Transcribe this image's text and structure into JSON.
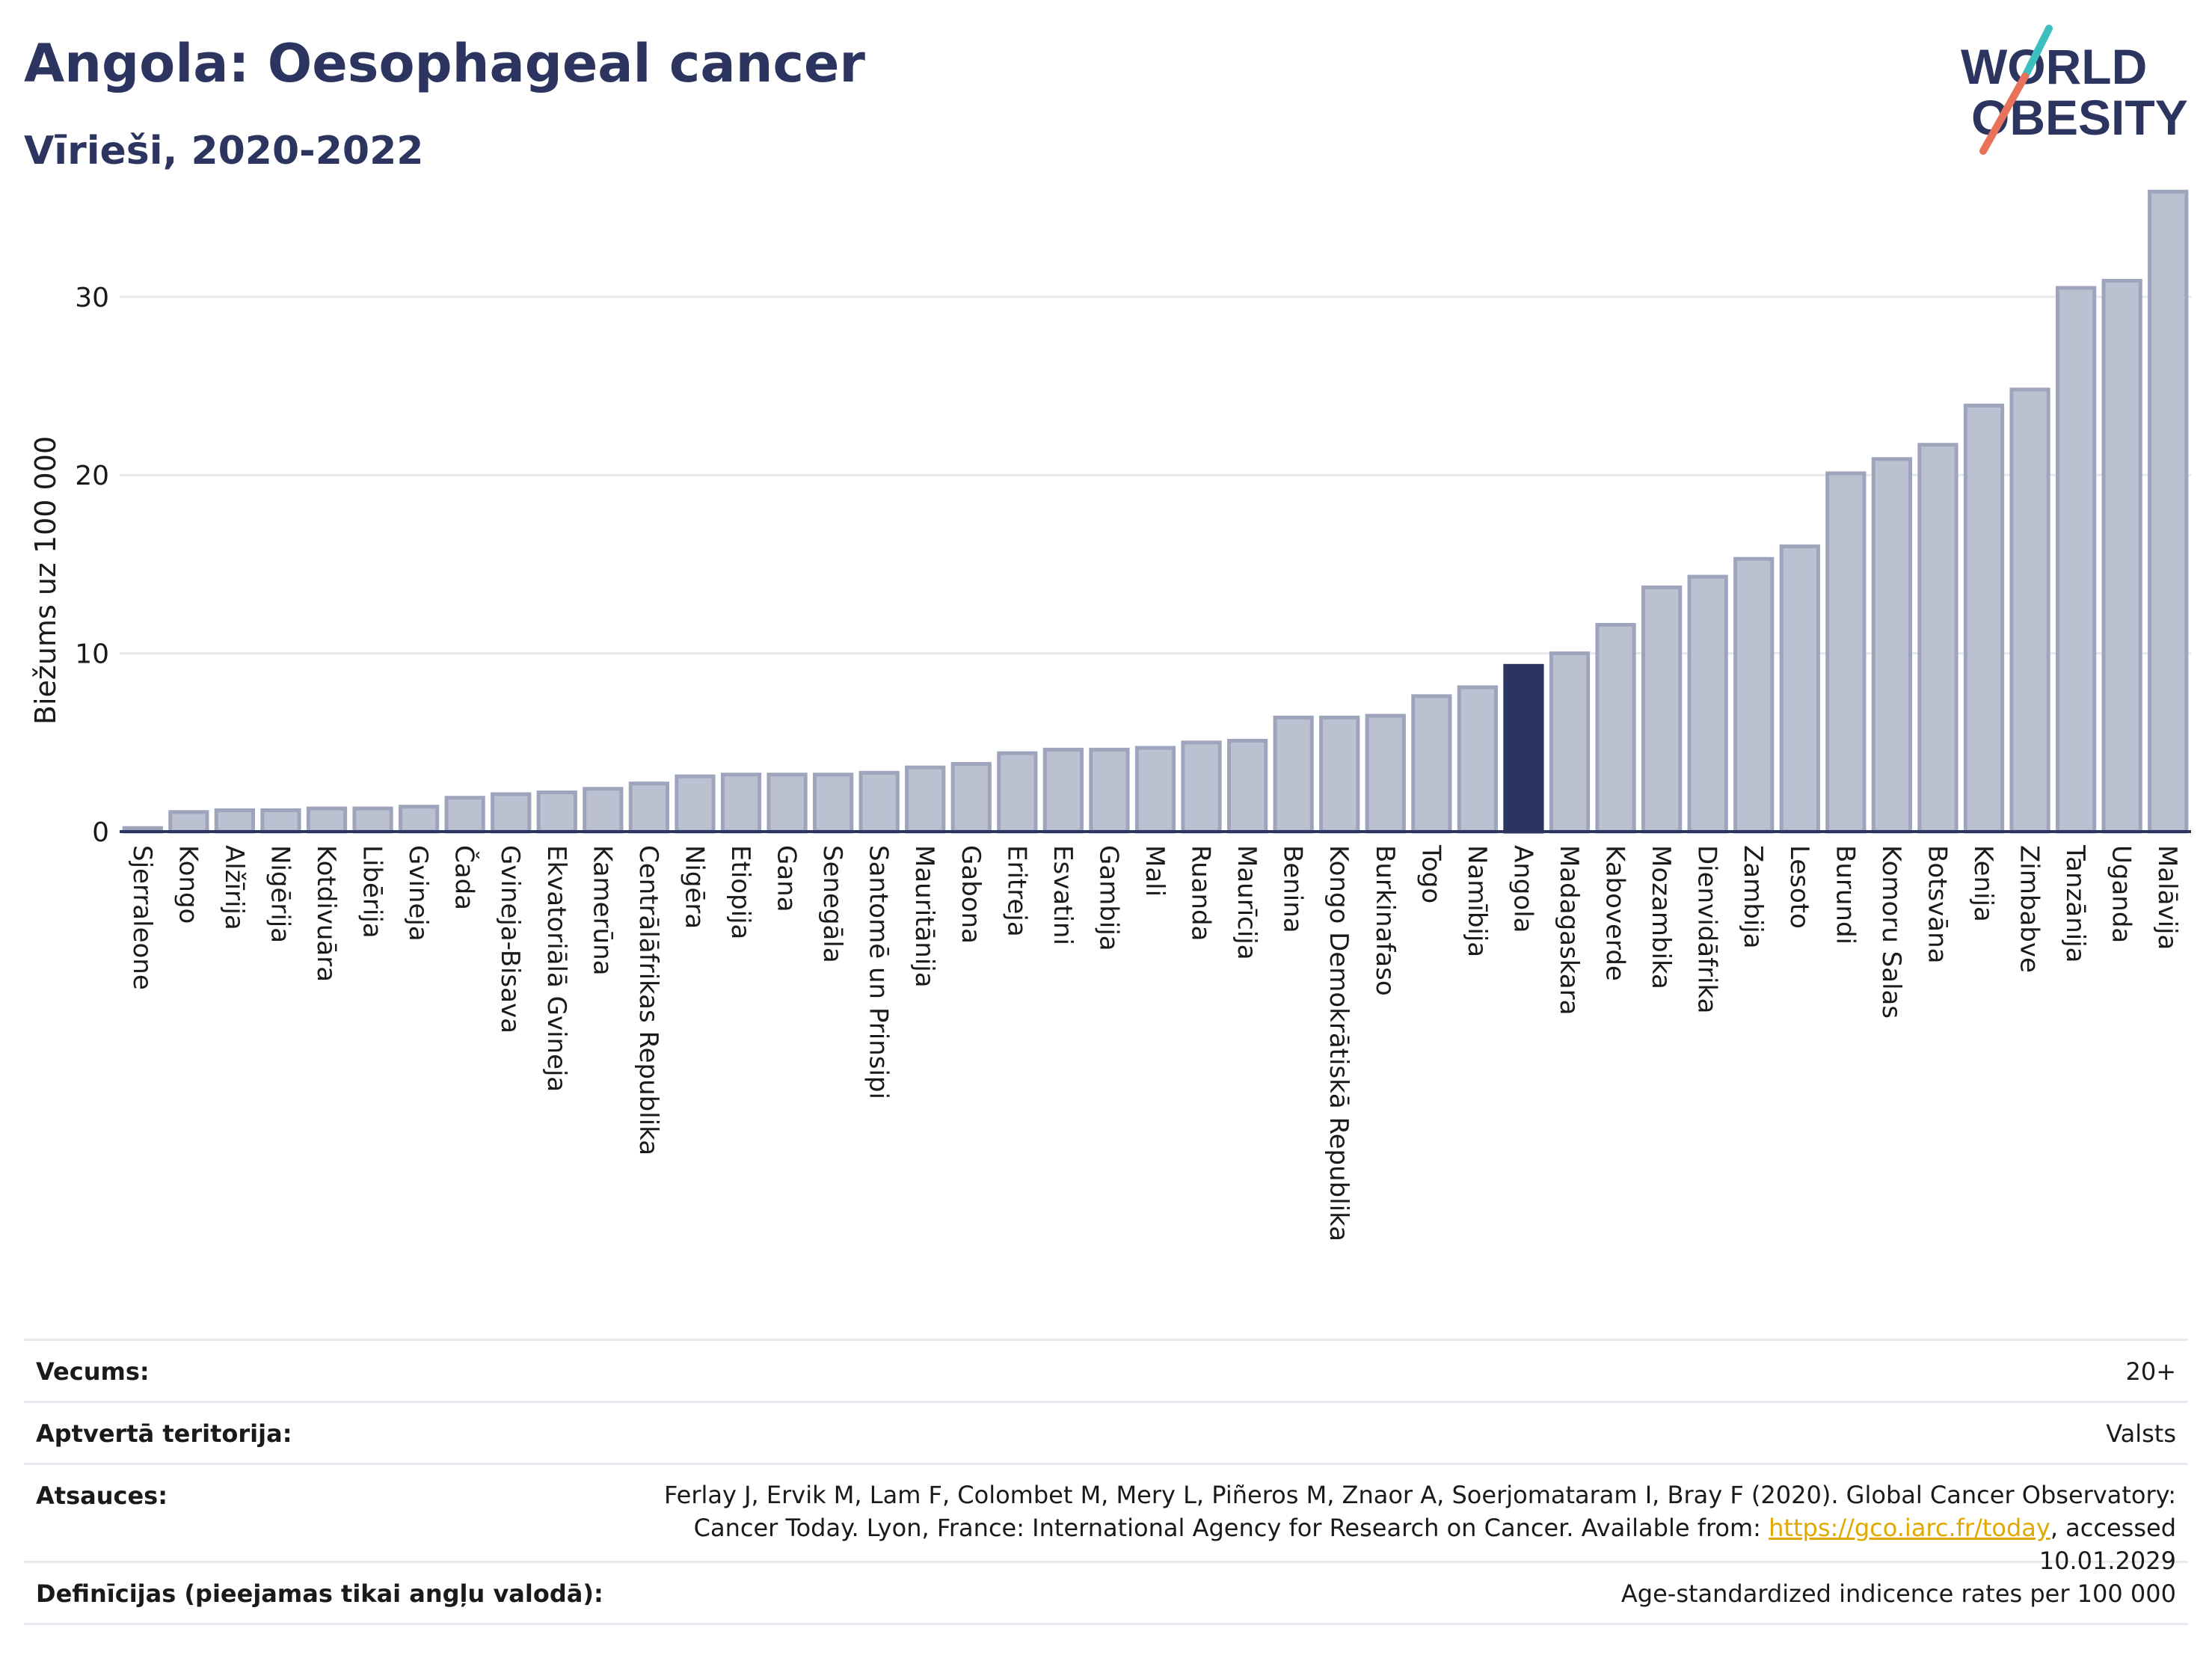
{
  "header": {
    "title": "Angola: Oesophageal cancer",
    "subtitle": "Vīrieši, 2020-2022"
  },
  "logo": {
    "line1": "WORLD",
    "line2": "OBESITY",
    "colors": {
      "text": "#2b3560",
      "slash_top": "#3dbfbf",
      "slash_bottom": "#e8735a"
    }
  },
  "colors": {
    "bar_default": "#bcc1d1",
    "bar_border": "#9ea4bc",
    "bar_highlight": "#2b3560",
    "grid": "#e6e9ee",
    "axis": "#2b3560"
  },
  "chart_data": {
    "type": "bar",
    "ylabel": "Biežums uz 100 000",
    "xlabel": "",
    "ylim": [
      0,
      37
    ],
    "yticks": [
      0,
      10,
      20,
      30
    ],
    "grid": true,
    "highlight": "Angola",
    "categories": [
      "Sjerraleone",
      "Kongo",
      "Alžīrija",
      "Nigērija",
      "Kotdivuāra",
      "Libērija",
      "Gvineja",
      "Čada",
      "Gvineja-Bisava",
      "Ekvatoriālā Gvineja",
      "Kamerūna",
      "Centrālāfrikas Republika",
      "Nigēra",
      "Etiopija",
      "Gana",
      "Senegāla",
      "Santomē un Prinsipi",
      "Mauritānija",
      "Gabona",
      "Eritreja",
      "Esvatini",
      "Gambija",
      "Mali",
      "Ruanda",
      "Maurīcija",
      "Benina",
      "Kongo Demokrātiskā Republika",
      "Burkinafaso",
      "Togo",
      "Namībija",
      "Angola",
      "Madagaskara",
      "Kaboverde",
      "Mozambika",
      "Dienvidāfrika",
      "Zambija",
      "Lesoto",
      "Burundi",
      "Komoru Salas",
      "Botsvāna",
      "Kenija",
      "Zimbabve",
      "Tanzānija",
      "Uganda",
      "Malāvija"
    ],
    "values": [
      0.2,
      1.1,
      1.2,
      1.2,
      1.3,
      1.3,
      1.4,
      1.9,
      2.1,
      2.2,
      2.4,
      2.7,
      3.1,
      3.2,
      3.2,
      3.2,
      3.3,
      3.6,
      3.8,
      4.4,
      4.6,
      4.6,
      4.7,
      5.0,
      5.1,
      6.4,
      6.4,
      6.5,
      7.6,
      8.1,
      9.3,
      10.0,
      11.6,
      13.7,
      14.3,
      15.3,
      16.0,
      20.1,
      20.9,
      21.7,
      23.9,
      24.8,
      30.5,
      30.9,
      35.9
    ]
  },
  "meta": {
    "age_label": "Vecums:",
    "age_value": "20+",
    "coverage_label": "Aptvertā teritorija:",
    "coverage_value": "Valsts",
    "references_label": "Atsauces:",
    "references_text1": "Ferlay J, Ervik M, Lam F, Colombet M, Mery L, Piñeros M, Znaor A, Soerjomataram I, Bray F (2020). Global Cancer Observatory: Cancer Today. Lyon, France: International Agency for Research on Cancer. Available from: ",
    "references_link": "https://gco.iarc.fr/today",
    "references_text2": ", accessed 10.01.2029",
    "definitions_label": "Definīcijas (pieejamas tikai angļu valodā):",
    "definitions_value": "Age-standardized indicence rates per 100 000"
  }
}
